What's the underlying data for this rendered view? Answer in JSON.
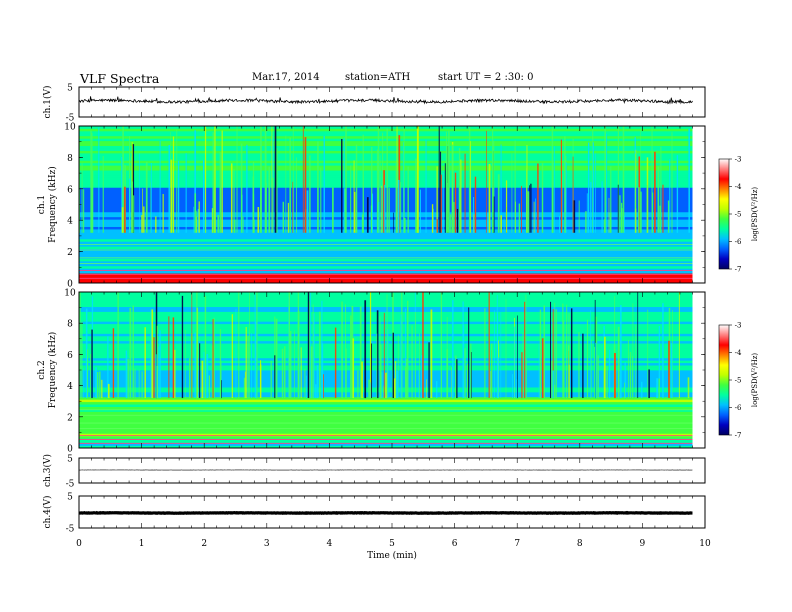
{
  "header": {
    "title": "VLF  Spectra",
    "date": "Mar.17, 2014",
    "station": "station=ATH",
    "start": "start  UT =  2 :30: 0"
  },
  "chart_data": [
    {
      "type": "line",
      "panel": "ch1-waveform",
      "ylabel": "ch.1(V)",
      "ylim": [
        -5,
        5
      ],
      "yticks": [
        "5",
        "-5"
      ],
      "baseline": 0.3,
      "xlim": [
        0,
        10
      ],
      "end_time_min": 9.8
    },
    {
      "type": "heatmap",
      "panel": "ch1-spectrogram",
      "ylabel": "ch.1 Frequency  (kHz)",
      "ylim": [
        0,
        10
      ],
      "yticks": [
        "0",
        "2",
        "4",
        "6",
        "8",
        "10"
      ],
      "colorbar": {
        "label": "log(PSD(V²/Hz)",
        "ticks": [
          "-3",
          "-4",
          "-5",
          "-6",
          "-7"
        ],
        "range": [
          -7,
          -3
        ]
      },
      "colors": [
        "#000060",
        "#0000c0",
        "#0060ff",
        "#00c0ff",
        "#00ffa0",
        "#40ff40",
        "#c0ff00",
        "#ffff00",
        "#ff8000",
        "#ff0000",
        "#ff8080",
        "#ffffff"
      ]
    },
    {
      "type": "heatmap",
      "panel": "ch2-spectrogram",
      "ylabel": "ch.2 Frequency  (kHz)",
      "ylim": [
        0,
        10
      ],
      "yticks": [
        "0",
        "2",
        "4",
        "6",
        "8",
        "10"
      ],
      "colorbar": {
        "label": "log(PSD(V²/Hz)",
        "ticks": [
          "-3",
          "-4",
          "-5",
          "-6",
          "-7"
        ],
        "range": [
          -7,
          -3
        ]
      }
    },
    {
      "type": "line",
      "panel": "ch3-waveform",
      "ylabel": "ch.3(V)",
      "ylim": [
        -5,
        5
      ],
      "yticks": [
        "5",
        "-5"
      ],
      "baseline": 0.2
    },
    {
      "type": "line",
      "panel": "ch4-waveform",
      "ylabel": "ch.4(V)",
      "ylim": [
        -5,
        5
      ],
      "yticks": [
        "5",
        "-5"
      ],
      "baseline": -0.3
    }
  ],
  "xaxis": {
    "label": "Time  (min)",
    "ticks": [
      "0",
      "1",
      "2",
      "3",
      "4",
      "5",
      "6",
      "7",
      "8",
      "9",
      "10"
    ],
    "xlim": [
      0,
      10
    ]
  }
}
